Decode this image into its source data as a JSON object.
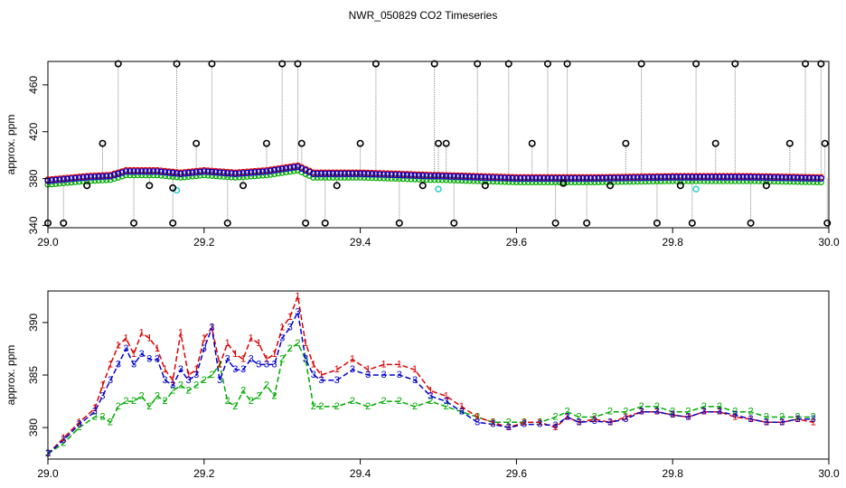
{
  "title": "NWR_050829  CO2 Timeseries",
  "colors": {
    "s1": "#dd0000",
    "s2": "#00aa00",
    "s3": "#0000cc",
    "outlier": "#000000",
    "flag": "#22cccc",
    "spike": "#888888"
  },
  "chart_data": [
    {
      "type": "scatter",
      "title": "",
      "xlabel": "",
      "ylabel": "approx. ppm",
      "xlim": [
        29.0,
        30.0
      ],
      "ylim": [
        338,
        480
      ],
      "xticks": [
        29.0,
        29.2,
        29.4,
        29.6,
        29.8,
        30.0
      ],
      "xtick_labels": [
        "29.0",
        "29.2",
        "29.4",
        "29.6",
        "29.8",
        "30.0"
      ],
      "yticks": [
        340,
        380,
        420,
        460
      ],
      "ytick_labels": [
        "340",
        "380",
        "420",
        "460"
      ],
      "grid": false,
      "baseline": {
        "x": [
          29.0,
          29.05,
          29.08,
          29.1,
          29.14,
          29.17,
          29.2,
          29.24,
          29.28,
          29.3,
          29.32,
          29.34,
          29.4,
          29.45,
          29.49,
          29.5,
          29.55,
          29.6,
          29.65,
          29.7,
          29.8,
          29.85,
          29.9,
          29.99
        ],
        "values": [
          378,
          381,
          382,
          386,
          386,
          384,
          386,
          384,
          386,
          388,
          390,
          384,
          384,
          383,
          382,
          382,
          381,
          380,
          380,
          380,
          381,
          381,
          381,
          380
        ],
        "series2_offset": -3
      },
      "outliers": {
        "x": [
          29.0,
          29.02,
          29.05,
          29.07,
          29.09,
          29.11,
          29.13,
          29.16,
          29.16,
          29.165,
          29.19,
          29.21,
          29.23,
          29.25,
          29.28,
          29.3,
          29.32,
          29.325,
          29.33,
          29.355,
          29.37,
          29.4,
          29.42,
          29.45,
          29.48,
          29.495,
          29.5,
          29.51,
          29.52,
          29.55,
          29.56,
          29.59,
          29.62,
          29.64,
          29.65,
          29.66,
          29.665,
          29.69,
          29.72,
          29.74,
          29.76,
          29.78,
          29.81,
          29.825,
          29.83,
          29.855,
          29.88,
          29.9,
          29.92,
          29.95,
          29.97,
          29.99,
          29.995,
          29.998
        ],
        "values": [
          342,
          342,
          374,
          410,
          478,
          342,
          374,
          342,
          372,
          478,
          410,
          478,
          342,
          374,
          410,
          478,
          478,
          410,
          342,
          342,
          374,
          410,
          478,
          342,
          374,
          478,
          410,
          410,
          342,
          478,
          374,
          478,
          410,
          478,
          342,
          376,
          478,
          342,
          374,
          410,
          478,
          342,
          374,
          342,
          478,
          410,
          478,
          342,
          374,
          410,
          478,
          478,
          410,
          342
        ]
      },
      "flagged": {
        "x": [
          29.165,
          29.5,
          29.83
        ],
        "values": [
          370,
          371,
          371
        ]
      }
    },
    {
      "type": "line",
      "title": "",
      "xlabel": "",
      "ylabel": "approx. ppm",
      "xlim": [
        29.0,
        30.0
      ],
      "ylim": [
        377,
        393
      ],
      "xticks": [
        29.0,
        29.2,
        29.4,
        29.6,
        29.8,
        30.0
      ],
      "xtick_labels": [
        "29.0",
        "29.2",
        "29.4",
        "29.6",
        "29.8",
        "30.0"
      ],
      "yticks": [
        380,
        385,
        390
      ],
      "ytick_labels": [
        "380",
        "385",
        "390"
      ],
      "grid": false,
      "series": [
        {
          "marker": "1",
          "x": [
            29.0,
            29.02,
            29.04,
            29.06,
            29.07,
            29.08,
            29.09,
            29.1,
            29.11,
            29.12,
            29.13,
            29.14,
            29.15,
            29.16,
            29.17,
            29.18,
            29.19,
            29.2,
            29.21,
            29.22,
            29.23,
            29.24,
            29.25,
            29.26,
            29.27,
            29.28,
            29.29,
            29.3,
            29.31,
            29.32,
            29.33,
            29.34,
            29.35,
            29.37,
            29.39,
            29.41,
            29.43,
            29.45,
            29.47,
            29.49,
            29.51,
            29.53,
            29.55,
            29.57,
            29.59,
            29.61,
            29.63,
            29.65,
            29.665,
            29.68,
            29.7,
            29.72,
            29.74,
            29.76,
            29.78,
            29.8,
            29.82,
            29.84,
            29.86,
            29.88,
            29.9,
            29.92,
            29.94,
            29.96,
            29.98
          ],
          "values": [
            377.5,
            379.0,
            380.5,
            381.8,
            384.0,
            386.0,
            387.8,
            388.5,
            387.0,
            389.0,
            388.5,
            387.5,
            385.5,
            384.5,
            389.0,
            385.0,
            385.5,
            388.5,
            389.5,
            386.0,
            388.0,
            387.0,
            386.5,
            388.5,
            388.0,
            386.5,
            387.0,
            389.5,
            390.5,
            392.5,
            388.0,
            386.0,
            385.0,
            385.5,
            386.5,
            385.5,
            386.0,
            386.0,
            385.5,
            383.5,
            383.0,
            382.0,
            381.0,
            380.5,
            380.0,
            380.5,
            380.5,
            380.0,
            381.0,
            380.5,
            380.8,
            380.5,
            381.0,
            381.5,
            381.5,
            381.2,
            381.0,
            381.5,
            381.5,
            381.0,
            380.8,
            380.5,
            380.5,
            380.8,
            380.5
          ]
        },
        {
          "marker": "2",
          "x": [
            29.0,
            29.02,
            29.04,
            29.06,
            29.07,
            29.08,
            29.09,
            29.1,
            29.11,
            29.12,
            29.13,
            29.14,
            29.15,
            29.16,
            29.17,
            29.18,
            29.19,
            29.2,
            29.21,
            29.22,
            29.23,
            29.24,
            29.25,
            29.26,
            29.27,
            29.28,
            29.29,
            29.3,
            29.31,
            29.32,
            29.33,
            29.34,
            29.35,
            29.37,
            29.39,
            29.41,
            29.43,
            29.45,
            29.47,
            29.49,
            29.51,
            29.53,
            29.55,
            29.57,
            29.59,
            29.61,
            29.63,
            29.65,
            29.665,
            29.68,
            29.7,
            29.72,
            29.74,
            29.76,
            29.78,
            29.8,
            29.82,
            29.84,
            29.86,
            29.88,
            29.9,
            29.92,
            29.94,
            29.96,
            29.98
          ],
          "values": [
            377.5,
            378.5,
            380.0,
            381.0,
            381.0,
            380.5,
            382.0,
            382.5,
            382.5,
            383.0,
            382.0,
            383.0,
            382.5,
            383.5,
            384.0,
            383.5,
            384.0,
            384.5,
            385.0,
            386.0,
            382.5,
            382.0,
            383.5,
            382.5,
            383.0,
            384.0,
            383.0,
            386.5,
            387.5,
            388.0,
            386.5,
            382.0,
            382.0,
            382.0,
            382.5,
            382.0,
            382.5,
            382.5,
            382.0,
            382.5,
            382.0,
            381.5,
            381.0,
            380.5,
            380.5,
            380.5,
            380.5,
            381.0,
            381.5,
            381.0,
            381.0,
            381.5,
            381.5,
            382.0,
            382.0,
            381.5,
            381.5,
            382.0,
            382.0,
            381.5,
            381.5,
            381.0,
            381.0,
            381.0,
            381.0
          ]
        },
        {
          "marker": "3",
          "x": [
            29.0,
            29.02,
            29.04,
            29.06,
            29.07,
            29.08,
            29.09,
            29.1,
            29.11,
            29.12,
            29.13,
            29.14,
            29.15,
            29.16,
            29.17,
            29.18,
            29.19,
            29.2,
            29.21,
            29.22,
            29.23,
            29.24,
            29.25,
            29.26,
            29.27,
            29.28,
            29.29,
            29.3,
            29.31,
            29.32,
            29.33,
            29.34,
            29.35,
            29.37,
            29.39,
            29.41,
            29.43,
            29.45,
            29.47,
            29.49,
            29.51,
            29.53,
            29.55,
            29.57,
            29.59,
            29.61,
            29.63,
            29.65,
            29.665,
            29.68,
            29.7,
            29.72,
            29.74,
            29.76,
            29.78,
            29.8,
            29.82,
            29.84,
            29.86,
            29.88,
            29.9,
            29.92,
            29.94,
            29.96,
            29.98
          ],
          "values": [
            377.5,
            378.8,
            380.3,
            381.5,
            383.0,
            384.5,
            386.0,
            387.5,
            386.0,
            387.0,
            386.5,
            386.5,
            384.5,
            384.0,
            385.5,
            384.5,
            385.0,
            387.5,
            389.5,
            384.5,
            386.5,
            385.5,
            385.5,
            386.5,
            386.0,
            386.0,
            386.0,
            388.5,
            389.5,
            391.0,
            386.5,
            385.0,
            384.5,
            384.5,
            385.5,
            385.0,
            385.0,
            385.0,
            384.5,
            383.0,
            382.5,
            381.5,
            380.5,
            380.3,
            380.0,
            380.3,
            380.3,
            380.2,
            381.0,
            380.5,
            380.6,
            380.5,
            380.8,
            381.5,
            381.5,
            381.2,
            381.0,
            381.5,
            381.5,
            381.2,
            380.8,
            380.5,
            380.5,
            380.8,
            380.8
          ]
        }
      ]
    }
  ]
}
